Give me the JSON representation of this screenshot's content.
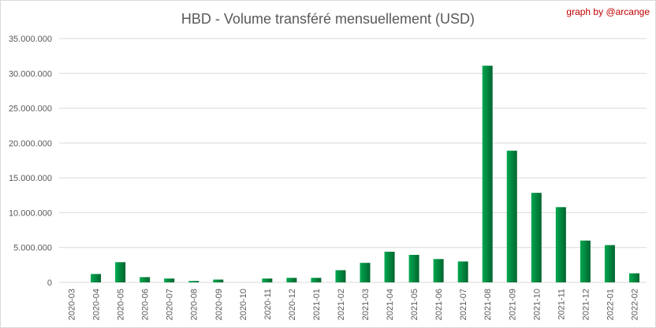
{
  "chart_data": {
    "type": "bar",
    "title": "HBD - Volume transféré mensuellement (USD)",
    "credit": "graph by @arcange",
    "xlabel": "",
    "ylabel": "",
    "ylim": [
      0,
      35000000
    ],
    "yticks": [
      0,
      5000000,
      10000000,
      15000000,
      20000000,
      25000000,
      30000000,
      35000000
    ],
    "ytick_labels": [
      "0",
      "5.000.000",
      "10.000.000",
      "15.000.000",
      "20.000.000",
      "25.000.000",
      "30.000.000",
      "35.000.000"
    ],
    "grid": true,
    "bar_color": "#00a84f",
    "bar_color_dark": "#00652f",
    "categories": [
      "2020-03",
      "2020-04",
      "2020-05",
      "2020-06",
      "2020-07",
      "2020-08",
      "2020-09",
      "2020-10",
      "2020-11",
      "2020-12",
      "2021-01",
      "2021-02",
      "2021-03",
      "2021-04",
      "2021-05",
      "2021-06",
      "2021-07",
      "2021-08",
      "2021-09",
      "2021-10",
      "2021-11",
      "2021-12",
      "2022-01",
      "2022-02"
    ],
    "values": [
      0,
      1200000,
      2900000,
      750000,
      550000,
      200000,
      400000,
      0,
      550000,
      650000,
      650000,
      1750000,
      2800000,
      4400000,
      3950000,
      3350000,
      3000000,
      31100000,
      18900000,
      12850000,
      10800000,
      6000000,
      5350000,
      1300000
    ]
  }
}
